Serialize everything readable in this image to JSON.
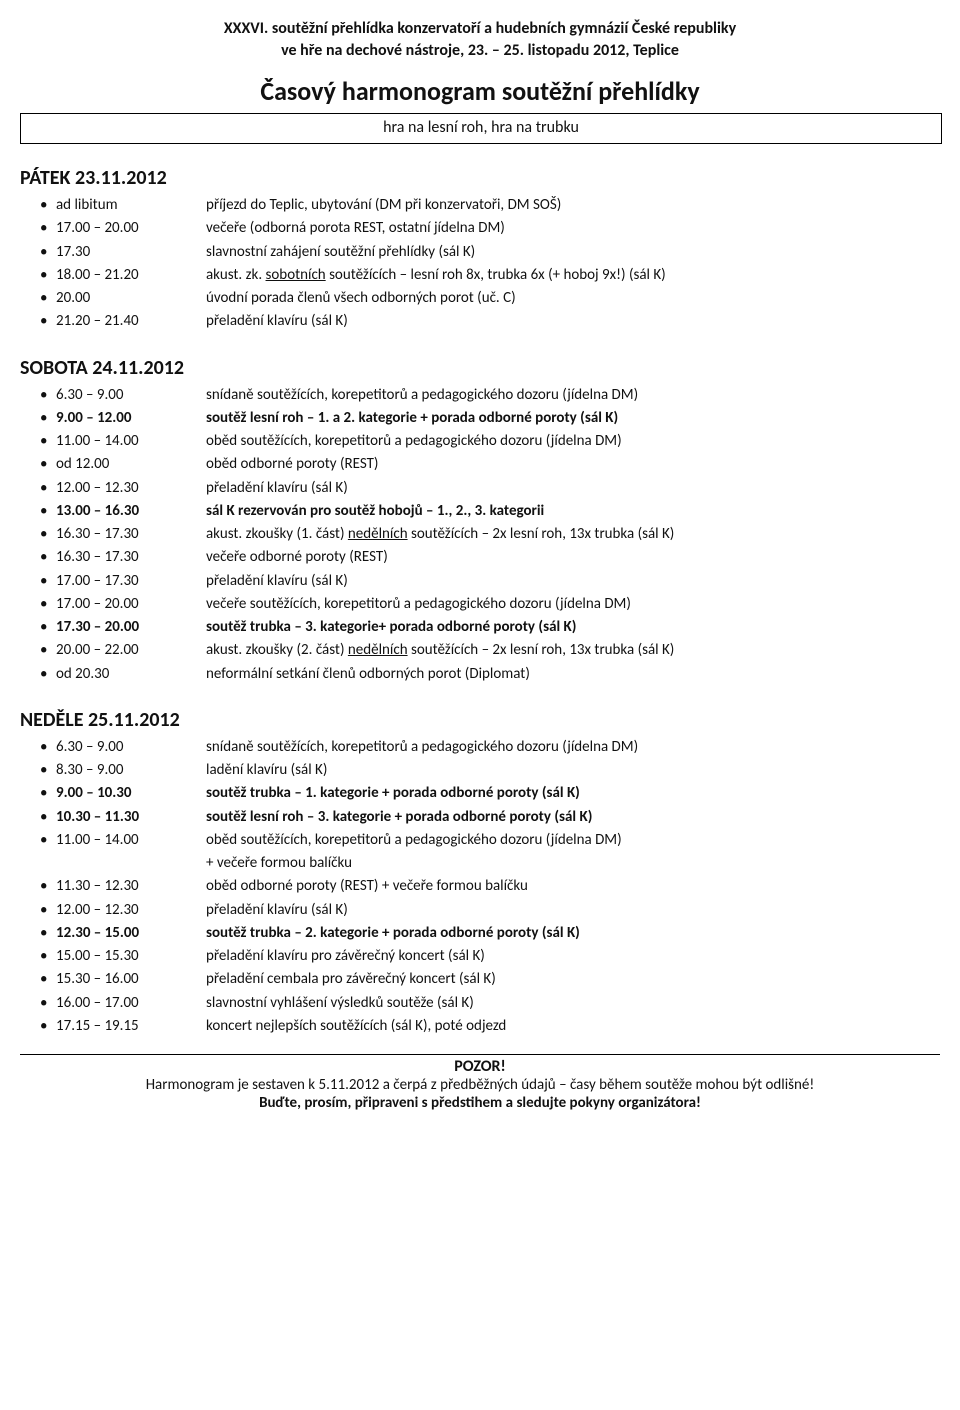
{
  "header": {
    "line1": "XXXVI. soutěžní přehlídka konzervatoří a hudebních gymnázií České republiky",
    "line2": "ve hře na dechové nástroje, 23. – 25. listopadu 2012, Teplice"
  },
  "main_title": "Časový harmonogram soutěžní přehlídky",
  "subtitle_box": "hra na lesní roh, hra na trubku",
  "days": [
    {
      "title": "PÁTEK 23.11.2012",
      "items": [
        {
          "time": "ad libitum",
          "desc": "příjezd do Teplic, ubytování (DM při konzervatoři, DM SOŠ)",
          "bold": false
        },
        {
          "time": "17.00 – 20.00",
          "desc": "večeře (odborná porota REST, ostatní jídelna DM)",
          "bold": false
        },
        {
          "time": "17.30",
          "desc": "slavnostní zahájení soutěžní přehlídky (sál K)",
          "bold": false
        },
        {
          "time": "18.00 – 21.20",
          "desc_pre": "akust. zk. ",
          "desc_u": "sobotních",
          "desc_post": " soutěžících – lesní roh 8x, trubka 6x (+ hoboj 9x!) (sál K)",
          "bold": false,
          "has_underline": true
        },
        {
          "time": "20.00",
          "desc": "úvodní porada členů všech odborných porot (uč. C)",
          "bold": false
        },
        {
          "time": "21.20 – 21.40",
          "desc": "přeladění klavíru (sál K)",
          "bold": false
        }
      ]
    },
    {
      "title": "SOBOTA 24.11.2012",
      "items": [
        {
          "time": "6.30 – 9.00",
          "desc": "snídaně soutěžících, korepetitorů a pedagogického dozoru (jídelna DM)",
          "bold": false
        },
        {
          "time": "9.00 – 12.00",
          "desc": "soutěž lesní roh – 1. a 2. kategorie + porada odborné poroty (sál K)",
          "bold": true
        },
        {
          "time": "11.00 – 14.00",
          "desc": "oběd soutěžících, korepetitorů a pedagogického dozoru (jídelna DM)",
          "bold": false
        },
        {
          "time": "od 12.00",
          "desc": "oběd odborné poroty (REST)",
          "bold": false
        },
        {
          "time": "12.00 – 12.30",
          "desc": "přeladění klavíru (sál K)",
          "bold": false
        },
        {
          "time": "13.00 – 16.30",
          "desc": "sál K rezervován pro soutěž hobojů – 1., 2., 3. kategorii",
          "bold": true
        },
        {
          "time": "16.30 – 17.30",
          "desc_pre": "akust. zkoušky (1. část) ",
          "desc_u": "nedělních",
          "desc_post": " soutěžících – 2x lesní roh, 13x trubka (sál K)",
          "bold": false,
          "has_underline": true
        },
        {
          "time": "16.30 – 17.30",
          "desc": "večeře odborné poroty (REST)",
          "bold": false
        },
        {
          "time": "17.00 – 17.30",
          "desc": "přeladění klavíru (sál K)",
          "bold": false
        },
        {
          "time": "17.00 – 20.00",
          "desc": "večeře soutěžících, korepetitorů a pedagogického dozoru (jídelna DM)",
          "bold": false
        },
        {
          "time": "17.30 – 20.00",
          "desc": "soutěž trubka – 3. kategorie+ porada odborné poroty (sál K)",
          "bold": true
        },
        {
          "time": "20.00 – 22.00",
          "desc_pre": "akust. zkoušky (2. část) ",
          "desc_u": "nedělních",
          "desc_post": " soutěžících – 2x lesní roh, 13x trubka (sál K)",
          "bold": false,
          "has_underline": true
        },
        {
          "time": "od 20.30",
          "desc": "neformální setkání členů odborných porot (Diplomat)",
          "bold": false
        }
      ]
    },
    {
      "title": "NEDĚLE 25.11.2012",
      "items": [
        {
          "time": "6.30 – 9.00",
          "desc": "snídaně soutěžících, korepetitorů a pedagogického dozoru (jídelna DM)",
          "bold": false
        },
        {
          "time": "8.30 – 9.00",
          "desc": "ladění klavíru (sál K)",
          "bold": false
        },
        {
          "time": "9.00 – 10.30",
          "desc": "soutěž trubka – 1. kategorie + porada odborné poroty (sál K)",
          "bold": true
        },
        {
          "time": "10.30 – 11.30",
          "desc": "soutěž lesní roh – 3. kategorie + porada odborné poroty (sál K)",
          "bold": true
        },
        {
          "time": "11.00 – 14.00",
          "desc": "oběd soutěžících, korepetitorů a pedagogického dozoru (jídelna DM)",
          "extra_line": "+ večeře formou balíčku",
          "bold": false
        },
        {
          "time": "11.30 – 12.30",
          "desc": "oběd odborné poroty (REST) + večeře formou balíčku",
          "bold": false
        },
        {
          "time": "12.00 – 12.30",
          "desc": "přeladění klavíru (sál K)",
          "bold": false
        },
        {
          "time": "12.30 – 15.00",
          "desc": "soutěž trubka – 2. kategorie + porada odborné poroty (sál K)",
          "bold": true
        },
        {
          "time": "15.00 – 15.30",
          "desc": "přeladění klavíru pro závěrečný koncert (sál K)",
          "bold": false
        },
        {
          "time": "15.30 – 16.00",
          "desc": "přeladění cembala pro závěrečný koncert (sál K)",
          "bold": false
        },
        {
          "time": "16.00 – 17.00",
          "desc": "slavnostní vyhlášení výsledků soutěže (sál K)",
          "bold": false
        },
        {
          "time": "17.15 – 19.15",
          "desc": "koncert nejlepších soutěžících (sál K), poté odjezd",
          "bold": false
        }
      ]
    }
  ],
  "footer": {
    "pozor": "POZOR!",
    "line1": "Harmonogram je sestaven k 5.11.2012 a čerpá z předběžných údajů – časy během soutěže mohou být odlišné!",
    "line2": "Buďte, prosím, připraveni s předstihem a sledujte pokyny organizátora!"
  }
}
